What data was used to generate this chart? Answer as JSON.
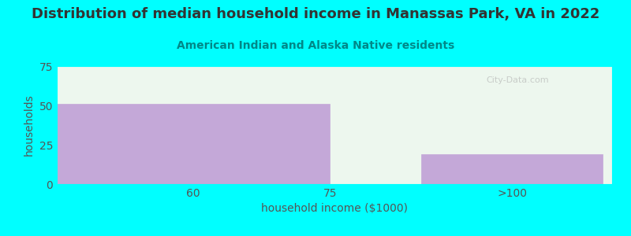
{
  "title": "Distribution of median household income in Manassas Park, VA in 2022",
  "subtitle": "American Indian and Alaska Native residents",
  "xlabel": "household income ($1000)",
  "ylabel": "households",
  "background_color": "#00ffff",
  "plot_bg_color": "#edf7ee",
  "bar_color": "#c4a8d8",
  "bar_edge_color": "#c4a8d8",
  "title_color": "#333333",
  "subtitle_color": "#008888",
  "axis_label_color": "#555555",
  "tick_color": "#555555",
  "watermark": "City-Data.com",
  "categories": [
    "60",
    "75",
    ">100"
  ],
  "values": [
    51,
    0,
    19
  ],
  "ylim": [
    0,
    75
  ],
  "yticks": [
    0,
    25,
    50,
    75
  ],
  "title_fontsize": 13,
  "subtitle_fontsize": 10,
  "label_fontsize": 10,
  "tick_fontsize": 10
}
